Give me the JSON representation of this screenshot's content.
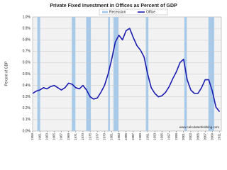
{
  "chart_data": {
    "type": "line",
    "title": "Private Fixed Investment in Offices as Percent of GDP",
    "y_label": "Percent of GDP",
    "source": "www.calculatedriskblog.com",
    "x": [
      1959,
      1960,
      1961,
      1962,
      1963,
      1964,
      1965,
      1966,
      1967,
      1968,
      1969,
      1970,
      1971,
      1972,
      1973,
      1974,
      1975,
      1976,
      1977,
      1978,
      1979,
      1980,
      1981,
      1982,
      1983,
      1984,
      1985,
      1986,
      1987,
      1988,
      1989,
      1990,
      1991,
      1992,
      1993,
      1994,
      1995,
      1996,
      1997,
      1998,
      1999,
      2000,
      2001,
      2002,
      2003,
      2004,
      2005,
      2006,
      2007,
      2008,
      2009,
      2010,
      2011
    ],
    "series": [
      {
        "name": "Office",
        "color": "#1c1cb0",
        "values": [
          0.33,
          0.35,
          0.36,
          0.38,
          0.37,
          0.39,
          0.4,
          0.38,
          0.36,
          0.38,
          0.42,
          0.41,
          0.38,
          0.37,
          0.4,
          0.36,
          0.3,
          0.28,
          0.29,
          0.34,
          0.4,
          0.5,
          0.63,
          0.78,
          0.84,
          0.8,
          0.88,
          0.9,
          0.82,
          0.75,
          0.71,
          0.65,
          0.5,
          0.38,
          0.33,
          0.3,
          0.31,
          0.34,
          0.39,
          0.46,
          0.52,
          0.6,
          0.63,
          0.45,
          0.36,
          0.33,
          0.33,
          0.38,
          0.45,
          0.45,
          0.35,
          0.21,
          0.17
        ]
      }
    ],
    "recession_name": "Recession",
    "recession_color": "#a9c9e8",
    "recessions": [
      [
        1960.3,
        1961.1
      ],
      [
        1969.9,
        1970.9
      ],
      [
        1973.9,
        1975.2
      ],
      [
        1980.0,
        1980.5
      ],
      [
        1981.5,
        1982.9
      ],
      [
        1990.5,
        1991.2
      ],
      [
        2001.2,
        2001.9
      ],
      [
        2007.9,
        2009.5
      ]
    ],
    "xlim": [
      1959,
      2011.5
    ],
    "xticks": [
      1959,
      1961,
      1963,
      1965,
      1967,
      1969,
      1971,
      1973,
      1975,
      1977,
      1979,
      1981,
      1983,
      1985,
      1987,
      1989,
      1991,
      1993,
      1995,
      1997,
      1999,
      2001,
      2003,
      2005,
      2007,
      2009,
      2011
    ],
    "ylim": [
      0,
      1.0
    ],
    "yticks": [
      {
        "value": 0,
        "label": "0.0%"
      },
      {
        "value": 0.1,
        "label": "0.1%"
      },
      {
        "value": 0.2,
        "label": "0.2%"
      },
      {
        "value": 0.3,
        "label": "0.3%"
      },
      {
        "value": 0.4,
        "label": "0.4%"
      },
      {
        "value": 0.5,
        "label": "0.5%"
      },
      {
        "value": 0.6,
        "label": "0.6%"
      },
      {
        "value": 0.7,
        "label": "0.7%"
      },
      {
        "value": 0.8,
        "label": "0.8%"
      },
      {
        "value": 0.9,
        "label": "0.9%"
      },
      {
        "value": 1.0,
        "label": "1.0%"
      }
    ],
    "grid": true
  }
}
